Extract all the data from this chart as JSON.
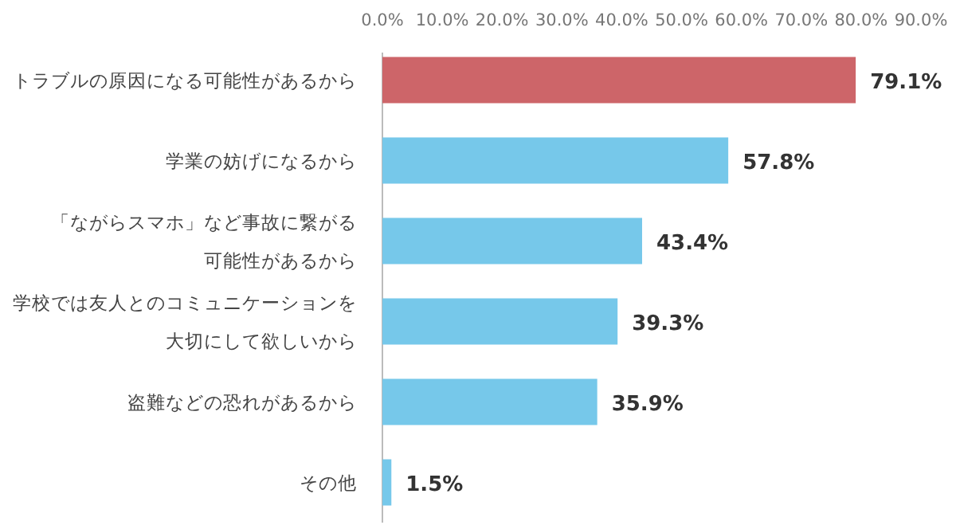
{
  "chart_data": {
    "type": "bar",
    "orientation": "horizontal",
    "categories": [
      "トラブルの原因になる可能性があるから",
      "学業の妨げになるから",
      "「ながらスマホ」など事故に繋がる可能性があるから",
      "学校では友人とのコミュニケーションを大切にして欲しいから",
      "盗難などの恐れがあるから",
      "その他"
    ],
    "values": [
      79.1,
      57.8,
      43.4,
      39.3,
      35.9,
      1.5
    ],
    "colors": [
      "#cd6569",
      "#76c8ea",
      "#76c8ea",
      "#76c8ea",
      "#76c8ea",
      "#76c8ea"
    ],
    "value_labels": [
      "79.1%",
      "57.8%",
      "43.4%",
      "39.3%",
      "35.9%",
      "1.5%"
    ],
    "xlim": [
      0,
      90
    ],
    "xticks": [
      {
        "value": 0,
        "label": "0.0%"
      },
      {
        "value": 10,
        "label": "10.0%"
      },
      {
        "value": 20,
        "label": "20.0%"
      },
      {
        "value": 30,
        "label": "30.0%"
      },
      {
        "value": 40,
        "label": "40.0%"
      },
      {
        "value": 50,
        "label": "50.0%"
      },
      {
        "value": 60,
        "label": "60.0%"
      },
      {
        "value": 70,
        "label": "70.0%"
      },
      {
        "value": 80,
        "label": "80.0%"
      },
      {
        "value": 90,
        "label": "90.0%"
      }
    ],
    "grid": false,
    "legend": false
  }
}
